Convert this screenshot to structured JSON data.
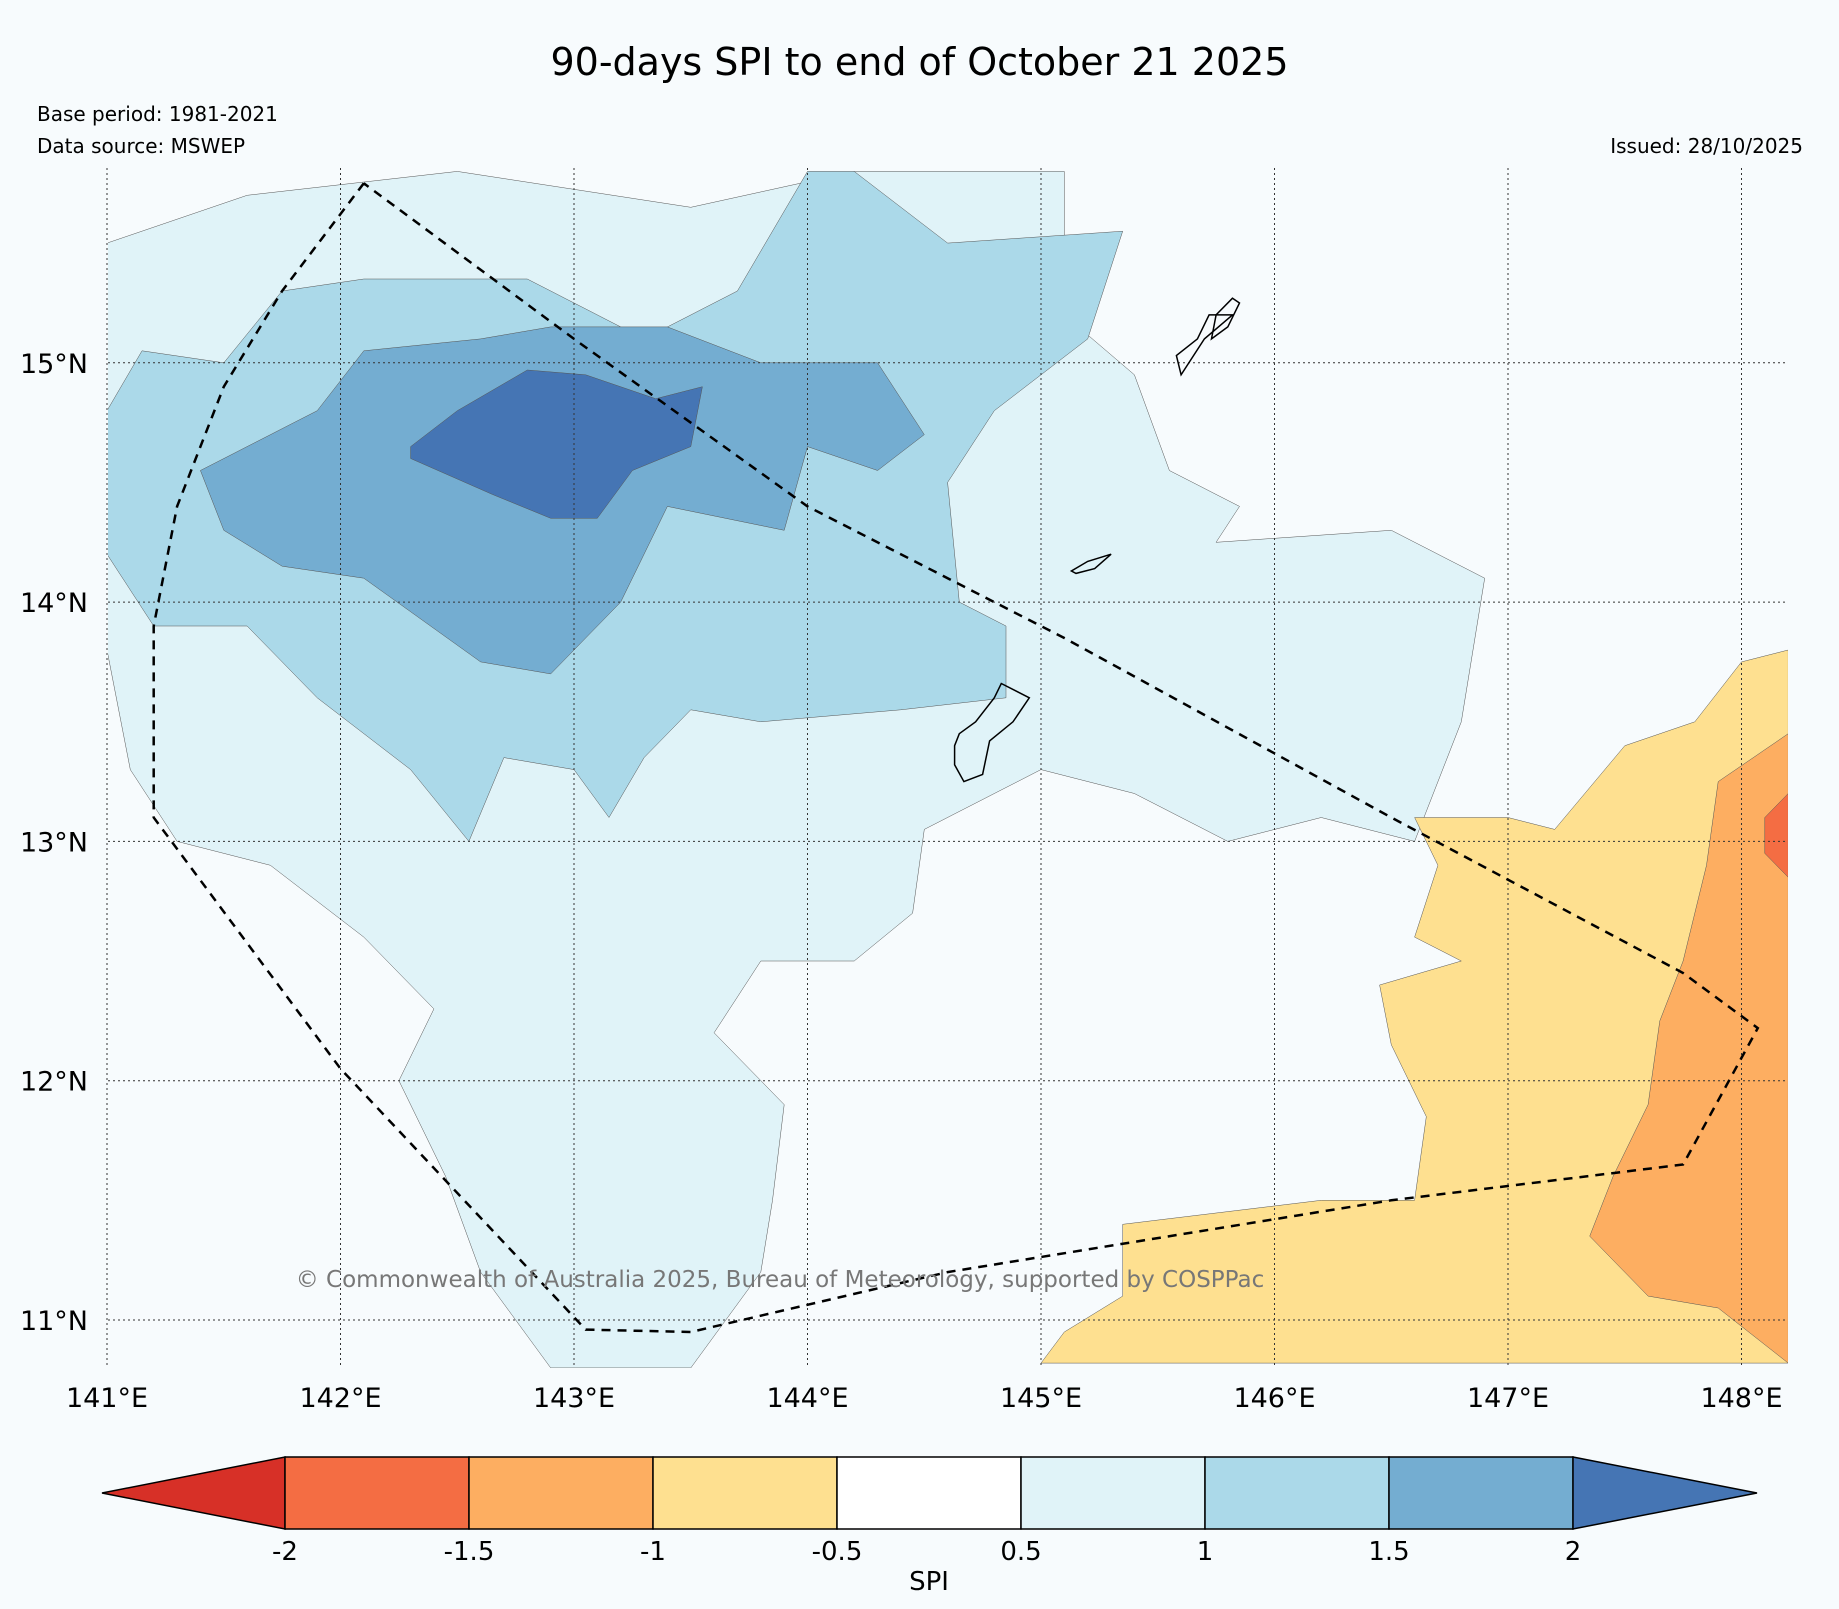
{
  "title": "90-days SPI to end of October 21 2025",
  "base_period": "Base period: 1981-2021",
  "data_source": "Data source: MSWEP",
  "issued": "Issued: 28/10/2025",
  "copyright": "© Commonwealth of Australia 2025, Bureau of Meteorology, supported by COSPPac",
  "map": {
    "extent": {
      "lon_min": 141.0,
      "lon_max": 148.2,
      "lat_min": 10.8,
      "lat_max": 15.8
    },
    "lon_ticks": [
      {
        "value": 141,
        "label": "141°E"
      },
      {
        "value": 142,
        "label": "142°E"
      },
      {
        "value": 143,
        "label": "143°E"
      },
      {
        "value": 144,
        "label": "144°E"
      },
      {
        "value": 145,
        "label": "145°E"
      },
      {
        "value": 146,
        "label": "146°E"
      },
      {
        "value": 147,
        "label": "147°E"
      },
      {
        "value": 148,
        "label": "148°E"
      }
    ],
    "lat_ticks": [
      {
        "value": 15,
        "label": "15°N"
      },
      {
        "value": 14,
        "label": "14°N"
      },
      {
        "value": 13,
        "label": "13°N"
      },
      {
        "value": 12,
        "label": "12°N"
      },
      {
        "value": 11,
        "label": "11°N"
      }
    ],
    "eez_boundary": [
      [
        142.1,
        15.75
      ],
      [
        141.75,
        15.3
      ],
      [
        141.5,
        14.9
      ],
      [
        141.3,
        14.4
      ],
      [
        141.2,
        13.9
      ],
      [
        141.2,
        13.1
      ],
      [
        142.0,
        12.05
      ],
      [
        143.05,
        10.96
      ],
      [
        143.5,
        10.95
      ],
      [
        144.6,
        11.2
      ],
      [
        146.5,
        11.5
      ],
      [
        147.75,
        11.65
      ],
      [
        148.07,
        12.22
      ],
      [
        147.75,
        12.45
      ],
      [
        146.5,
        13.1
      ],
      [
        145.1,
        13.85
      ],
      [
        144.0,
        14.4
      ],
      [
        143.0,
        15.1
      ],
      [
        142.1,
        15.75
      ]
    ],
    "islands": [
      [
        [
          144.83,
          13.66
        ],
        [
          144.95,
          13.6
        ],
        [
          144.88,
          13.5
        ],
        [
          144.78,
          13.42
        ],
        [
          144.75,
          13.28
        ],
        [
          144.67,
          13.25
        ],
        [
          144.63,
          13.32
        ],
        [
          144.63,
          13.4
        ],
        [
          144.65,
          13.45
        ],
        [
          144.72,
          13.5
        ],
        [
          144.8,
          13.6
        ],
        [
          144.83,
          13.66
        ]
      ],
      [
        [
          145.3,
          14.2
        ],
        [
          145.23,
          14.14
        ],
        [
          145.15,
          14.12
        ],
        [
          145.13,
          14.13
        ],
        [
          145.2,
          14.17
        ],
        [
          145.3,
          14.2
        ]
      ],
      [
        [
          145.82,
          15.2
        ],
        [
          145.7,
          15.1
        ],
        [
          145.6,
          14.95
        ],
        [
          145.58,
          15.03
        ],
        [
          145.67,
          15.1
        ],
        [
          145.72,
          15.2
        ],
        [
          145.82,
          15.2
        ]
      ],
      [
        [
          145.82,
          15.27
        ],
        [
          145.75,
          15.2
        ],
        [
          145.73,
          15.1
        ],
        [
          145.8,
          15.15
        ],
        [
          145.85,
          15.25
        ],
        [
          145.82,
          15.27
        ]
      ]
    ],
    "regions": [
      {
        "category": "0.5 to 1",
        "points": [
          [
            141,
            15.5
          ],
          [
            141.6,
            15.7
          ],
          [
            142.5,
            15.8
          ],
          [
            143.5,
            15.65
          ],
          [
            144.2,
            15.8
          ],
          [
            145.1,
            15.8
          ],
          [
            145.1,
            15.2
          ],
          [
            145.4,
            14.95
          ],
          [
            145.55,
            14.55
          ],
          [
            145.85,
            14.4
          ],
          [
            145.75,
            14.25
          ],
          [
            146.5,
            14.3
          ],
          [
            146.9,
            14.1
          ],
          [
            146.8,
            13.5
          ],
          [
            146.6,
            13.0
          ],
          [
            146.2,
            13.1
          ],
          [
            145.8,
            13.0
          ],
          [
            145.4,
            13.2
          ],
          [
            145.0,
            13.3
          ],
          [
            144.5,
            13.05
          ],
          [
            144.45,
            12.7
          ],
          [
            144.2,
            12.5
          ],
          [
            143.8,
            12.5
          ],
          [
            143.6,
            12.2
          ],
          [
            143.9,
            11.9
          ],
          [
            143.85,
            11.5
          ],
          [
            143.8,
            11.2
          ],
          [
            143.5,
            10.8
          ],
          [
            142.9,
            10.8
          ],
          [
            142.6,
            11.2
          ],
          [
            142.45,
            11.6
          ],
          [
            142.25,
            12.0
          ],
          [
            142.4,
            12.3
          ],
          [
            142.1,
            12.6
          ],
          [
            141.7,
            12.9
          ],
          [
            141.3,
            13.0
          ],
          [
            141.1,
            13.3
          ],
          [
            141,
            13.8
          ]
        ]
      },
      {
        "category": "1 to 1.5",
        "points": [
          [
            141,
            14.8
          ],
          [
            141.15,
            15.05
          ],
          [
            141.5,
            15.0
          ],
          [
            141.75,
            15.3
          ],
          [
            142.1,
            15.35
          ],
          [
            142.8,
            15.35
          ],
          [
            143.3,
            15.1
          ],
          [
            143.7,
            15.3
          ],
          [
            144.0,
            15.8
          ],
          [
            144.2,
            15.8
          ],
          [
            144.6,
            15.5
          ],
          [
            145.35,
            15.55
          ],
          [
            145.2,
            15.1
          ],
          [
            144.8,
            14.8
          ],
          [
            144.6,
            14.5
          ],
          [
            144.65,
            14.0
          ],
          [
            144.85,
            13.9
          ],
          [
            144.85,
            13.6
          ],
          [
            144.4,
            13.55
          ],
          [
            143.8,
            13.5
          ],
          [
            143.5,
            13.55
          ],
          [
            143.3,
            13.35
          ],
          [
            143.15,
            13.1
          ],
          [
            143.0,
            13.3
          ],
          [
            142.7,
            13.35
          ],
          [
            142.55,
            13.0
          ],
          [
            142.3,
            13.3
          ],
          [
            141.9,
            13.6
          ],
          [
            141.6,
            13.9
          ],
          [
            141.2,
            13.9
          ],
          [
            141,
            14.2
          ]
        ]
      },
      {
        "category": "1.5 to 2",
        "points": [
          [
            141.4,
            14.55
          ],
          [
            141.9,
            14.8
          ],
          [
            142.1,
            15.05
          ],
          [
            142.6,
            15.1
          ],
          [
            142.9,
            15.15
          ],
          [
            143.4,
            15.15
          ],
          [
            143.8,
            15.0
          ],
          [
            144.3,
            15.0
          ],
          [
            144.5,
            14.7
          ],
          [
            144.3,
            14.55
          ],
          [
            144.0,
            14.65
          ],
          [
            143.9,
            14.3
          ],
          [
            143.4,
            14.4
          ],
          [
            143.2,
            14.0
          ],
          [
            142.9,
            13.7
          ],
          [
            142.6,
            13.75
          ],
          [
            142.1,
            14.1
          ],
          [
            141.75,
            14.15
          ],
          [
            141.5,
            14.3
          ]
        ]
      },
      {
        "category": "> 2",
        "points": [
          [
            142.3,
            14.65
          ],
          [
            142.5,
            14.8
          ],
          [
            142.8,
            14.97
          ],
          [
            143.05,
            14.95
          ],
          [
            143.35,
            14.85
          ],
          [
            143.55,
            14.9
          ],
          [
            143.5,
            14.65
          ],
          [
            143.25,
            14.55
          ],
          [
            143.1,
            14.35
          ],
          [
            142.9,
            14.35
          ],
          [
            142.65,
            14.45
          ],
          [
            142.3,
            14.6
          ]
        ]
      },
      {
        "category": "-1 to -0.5",
        "points": [
          [
            148.2,
            13.8
          ],
          [
            148.0,
            13.75
          ],
          [
            147.8,
            13.5
          ],
          [
            147.5,
            13.4
          ],
          [
            147.2,
            13.05
          ],
          [
            147.0,
            13.1
          ],
          [
            146.6,
            13.1
          ],
          [
            146.7,
            12.9
          ],
          [
            146.6,
            12.6
          ],
          [
            146.8,
            12.5
          ],
          [
            146.45,
            12.4
          ],
          [
            146.5,
            12.15
          ],
          [
            146.65,
            11.85
          ],
          [
            146.6,
            11.5
          ],
          [
            146.2,
            11.5
          ],
          [
            145.35,
            11.4
          ],
          [
            145.35,
            11.1
          ],
          [
            145.1,
            10.95
          ],
          [
            145.0,
            10.82
          ],
          [
            148.2,
            10.82
          ]
        ]
      },
      {
        "category": "-1.5 to -1",
        "points": [
          [
            148.2,
            13.45
          ],
          [
            147.9,
            13.25
          ],
          [
            147.85,
            12.9
          ],
          [
            147.75,
            12.5
          ],
          [
            147.65,
            12.25
          ],
          [
            147.6,
            11.9
          ],
          [
            147.45,
            11.6
          ],
          [
            147.35,
            11.35
          ],
          [
            147.6,
            11.1
          ],
          [
            147.9,
            11.05
          ],
          [
            148.2,
            10.82
          ]
        ]
      },
      {
        "category": "-2 to -1.5",
        "points": [
          [
            148.2,
            13.2
          ],
          [
            148.1,
            13.1
          ],
          [
            148.1,
            12.95
          ],
          [
            148.2,
            12.85
          ]
        ]
      }
    ]
  },
  "colorbar": {
    "title": "SPI",
    "ticks": [
      "-2",
      "-1.5",
      "-1",
      "-0.5",
      "0.5",
      "1",
      "1.5",
      "2"
    ],
    "bins": [
      {
        "label": "< -2",
        "color": "#d73027"
      },
      {
        "label": "-2 to -1.5",
        "color": "#f46d43"
      },
      {
        "label": "-1.5 to -1",
        "color": "#fdae61"
      },
      {
        "label": "-1 to -0.5",
        "color": "#fee090"
      },
      {
        "label": "-0.5 to 0.5",
        "color": "#ffffff"
      },
      {
        "label": "0.5 to 1",
        "color": "#e0f3f8"
      },
      {
        "label": "1 to 1.5",
        "color": "#abd9e9"
      },
      {
        "label": "1.5 to 2",
        "color": "#74add1"
      },
      {
        "label": "> 2",
        "color": "#4575b4"
      }
    ]
  }
}
